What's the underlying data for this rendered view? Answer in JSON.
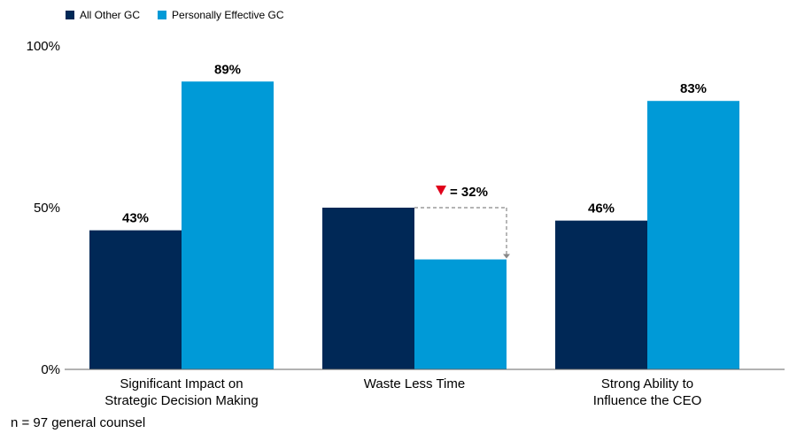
{
  "colors": {
    "series_0": "#002856",
    "series_1": "#009ad7",
    "down_marker": "#e0001b",
    "axis": "#666666",
    "annotation_line": "#888888"
  },
  "legend": [
    {
      "label": "All Other GC"
    },
    {
      "label": "Personally Effective GC"
    }
  ],
  "footnote": "n = 97 general counsel",
  "chart_data": {
    "type": "bar",
    "categories": [
      [
        "Significant Impact on",
        "Strategic Decision Making"
      ],
      [
        "Waste Less Time"
      ],
      [
        "Strong Ability to",
        "Influence the CEO"
      ]
    ],
    "series": [
      {
        "name": "All Other GC",
        "values": [
          43,
          50,
          46
        ],
        "data_labels": [
          "43%",
          "",
          "46%"
        ]
      },
      {
        "name": "Personally Effective GC",
        "values": [
          89,
          34,
          83
        ],
        "data_labels": [
          "89%",
          "",
          "83%"
        ]
      }
    ],
    "yticks": [
      "0%",
      "50%",
      "100%"
    ],
    "ytick_values": [
      0,
      50,
      100
    ],
    "ylim": [
      0,
      100
    ],
    "annotation": {
      "category_index": 1,
      "text": "= 32%",
      "marker": "down-triangle"
    },
    "legend_position": "top-left",
    "grid": false
  }
}
